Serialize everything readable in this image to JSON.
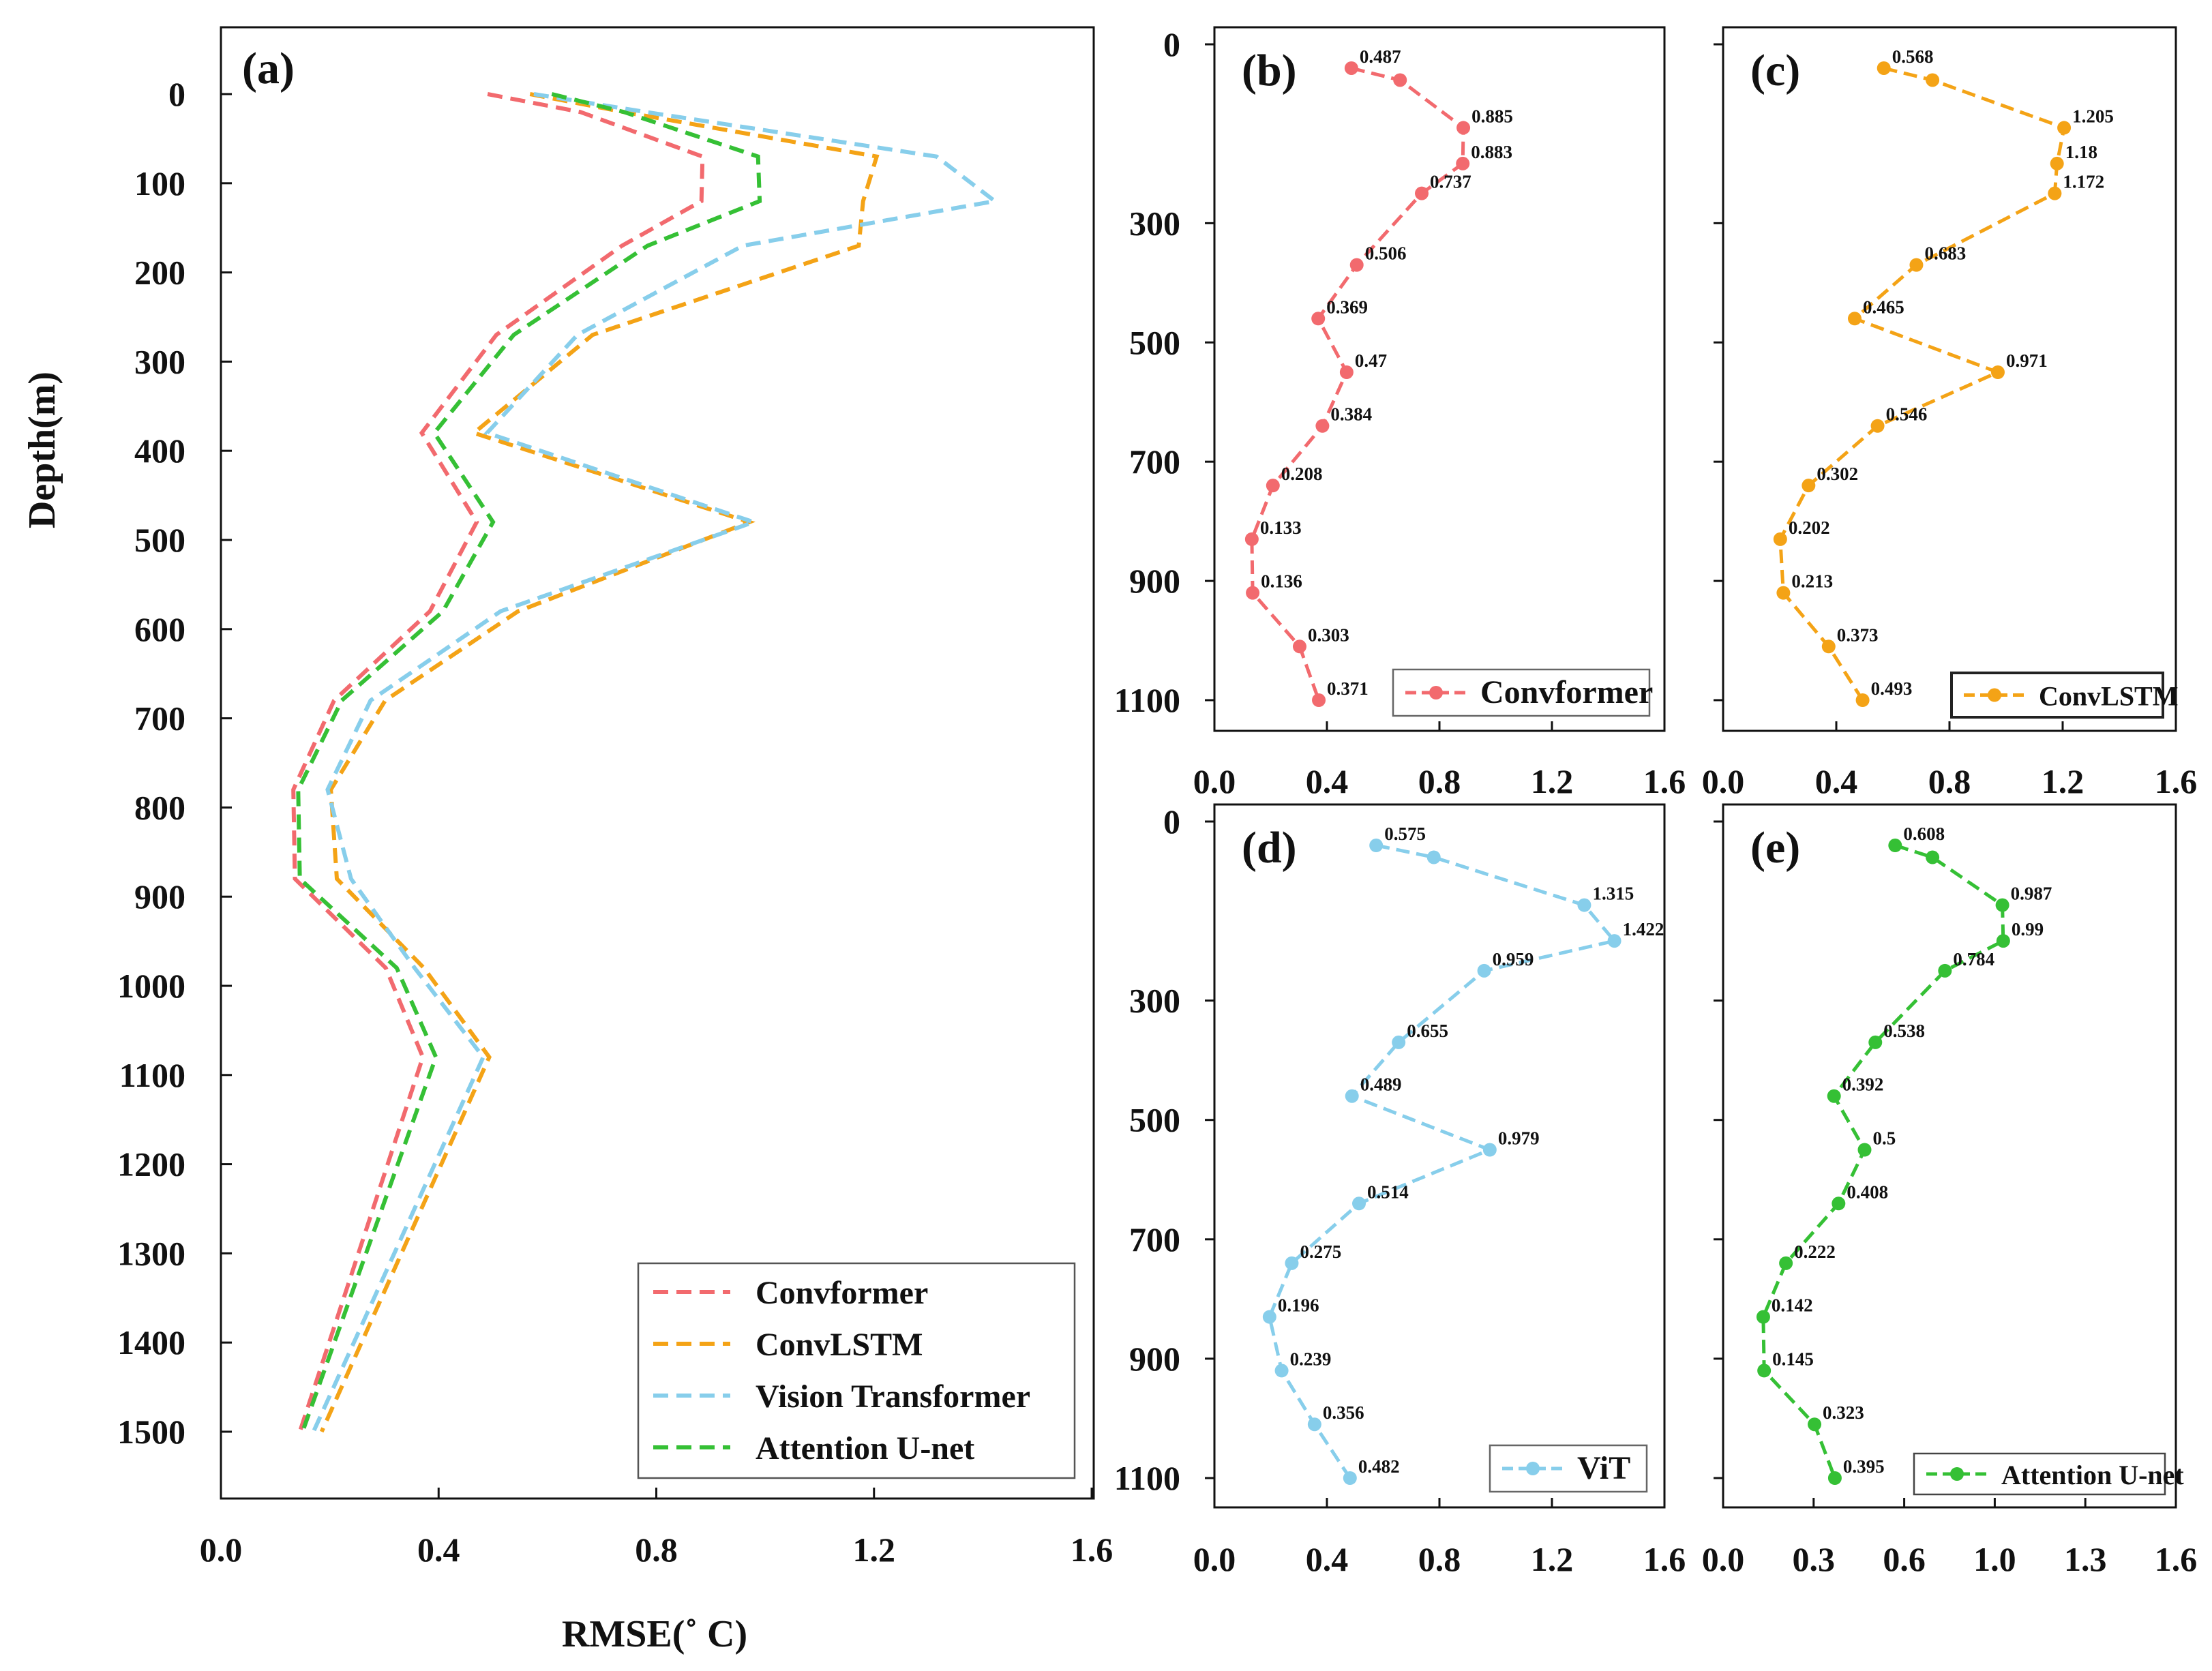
{
  "chart_data": [
    {
      "id": "a",
      "panel_label": "(a)",
      "type": "line",
      "xlabel": "RMSE(˚ C)",
      "ylabel": "Depth(m)",
      "xlim": [
        0.0,
        1.6
      ],
      "ylim": [
        1500,
        0
      ],
      "xticks": [
        "0.0",
        "0.4",
        "0.8",
        "1.2",
        "1.6"
      ],
      "yticks": [
        "0",
        "100",
        "200",
        "300",
        "400",
        "500",
        "600",
        "700",
        "800",
        "900",
        "1000",
        "1100",
        "1200",
        "1300",
        "1400",
        "1500"
      ],
      "legend_position": "bottom-right",
      "series": [
        {
          "name": "Convformer",
          "color": "#f26a6e",
          "x": [
            0.49,
            0.66,
            0.885,
            0.883,
            0.737,
            0.506,
            0.369,
            0.47,
            0.384,
            0.208,
            0.133,
            0.136,
            0.303,
            0.371,
            0.145
          ],
          "y": [
            0,
            20,
            70,
            120,
            170,
            270,
            380,
            480,
            580,
            680,
            780,
            880,
            980,
            1080,
            1500
          ]
        },
        {
          "name": "ConvLSTM",
          "color": "#f4a316",
          "x": [
            0.568,
            0.74,
            1.205,
            1.18,
            1.172,
            0.683,
            0.465,
            0.971,
            0.546,
            0.302,
            0.202,
            0.213,
            0.373,
            0.493,
            0.185
          ],
          "y": [
            0,
            20,
            70,
            120,
            170,
            270,
            380,
            480,
            580,
            680,
            780,
            880,
            980,
            1080,
            1500
          ]
        },
        {
          "name": "Vision Transformer",
          "color": "#87ceeb",
          "x": [
            0.575,
            0.78,
            1.315,
            1.422,
            0.959,
            0.655,
            0.489,
            0.979,
            0.514,
            0.275,
            0.196,
            0.239,
            0.356,
            0.482,
            0.17
          ],
          "y": [
            0,
            20,
            70,
            120,
            170,
            270,
            380,
            480,
            580,
            680,
            780,
            880,
            980,
            1080,
            1500
          ]
        },
        {
          "name": "Attention U-net",
          "color": "#35c035",
          "x": [
            0.608,
            0.74,
            0.987,
            0.99,
            0.784,
            0.538,
            0.392,
            0.5,
            0.408,
            0.222,
            0.142,
            0.145,
            0.323,
            0.395,
            0.15
          ],
          "y": [
            0,
            20,
            70,
            120,
            170,
            270,
            380,
            480,
            580,
            680,
            780,
            880,
            980,
            1080,
            1500
          ]
        }
      ]
    },
    {
      "id": "b",
      "panel_label": "(b)",
      "type": "line",
      "xlim": [
        0.0,
        1.6
      ],
      "ylim": [
        1100,
        0
      ],
      "xticks": [
        "0.0",
        "0.4",
        "0.8",
        "1.2",
        "1.6"
      ],
      "yticks": [
        "0",
        "300",
        "500",
        "700",
        "900",
        "1100"
      ],
      "legend_position": "bottom-right",
      "series": [
        {
          "name": "Convformer",
          "color": "#f26a6e",
          "x": [
            0.487,
            0.66,
            0.885,
            0.883,
            0.737,
            0.506,
            0.369,
            0.47,
            0.384,
            0.208,
            0.133,
            0.136,
            0.303,
            0.371
          ],
          "labels": [
            "0.487",
            "",
            "0.885",
            "0.883",
            "0.737",
            "0.506",
            "0.369",
            "0.47",
            "0.384",
            "0.208",
            "0.133",
            "0.136",
            "0.303",
            "0.371"
          ]
        }
      ]
    },
    {
      "id": "c",
      "panel_label": "(c)",
      "type": "line",
      "xlim": [
        0.0,
        1.6
      ],
      "ylim": [
        1100,
        0
      ],
      "xticks": [
        "0.0",
        "0.4",
        "0.8",
        "1.2",
        "1.6"
      ],
      "legend_position": "bottom-right",
      "series": [
        {
          "name": "ConvLSTM",
          "color": "#f4a316",
          "x": [
            0.568,
            0.74,
            1.205,
            1.18,
            1.172,
            0.683,
            0.465,
            0.971,
            0.546,
            0.302,
            0.202,
            0.213,
            0.373,
            0.493
          ],
          "labels": [
            "0.568",
            "",
            "1.205",
            "1.18",
            "1.172",
            "0.683",
            "0.465",
            "0.971",
            "0.546",
            "0.302",
            "0.202",
            "0.213",
            "0.373",
            "0.493"
          ]
        }
      ]
    },
    {
      "id": "d",
      "panel_label": "(d)",
      "type": "line",
      "xlim": [
        0.0,
        1.6
      ],
      "ylim": [
        1100,
        0
      ],
      "xticks": [
        "0.0",
        "0.4",
        "0.8",
        "1.2",
        "1.6"
      ],
      "yticks": [
        "0",
        "300",
        "500",
        "700",
        "900",
        "1100"
      ],
      "legend_position": "bottom-right",
      "series": [
        {
          "name": "ViT",
          "color": "#87ceeb",
          "x": [
            0.575,
            0.78,
            1.315,
            1.422,
            0.959,
            0.655,
            0.489,
            0.979,
            0.514,
            0.275,
            0.196,
            0.239,
            0.356,
            0.482
          ],
          "labels": [
            "0.575",
            "",
            "1.315",
            "1.422",
            "0.959",
            "0.655",
            "0.489",
            "0.979",
            "0.514",
            "0.275",
            "0.196",
            "0.239",
            "0.356",
            "0.482"
          ]
        }
      ]
    },
    {
      "id": "e",
      "panel_label": "(e)",
      "type": "line",
      "xlim": [
        0.0,
        1.6
      ],
      "ylim": [
        1100,
        0
      ],
      "xticks": [
        "0.0",
        "0.3",
        "0.6",
        "1.0",
        "1.3",
        "1.6"
      ],
      "legend_position": "bottom-right",
      "series": [
        {
          "name": "Attention U-net",
          "color": "#35c035",
          "x": [
            0.608,
            0.74,
            0.987,
            0.99,
            0.784,
            0.538,
            0.392,
            0.5,
            0.408,
            0.222,
            0.142,
            0.145,
            0.323,
            0.395
          ],
          "labels": [
            "0.608",
            "",
            "0.987",
            "0.99",
            "0.784",
            "0.538",
            "0.392",
            "0.5",
            "0.408",
            "0.222",
            "0.142",
            "0.145",
            "0.323",
            "0.395"
          ]
        }
      ]
    }
  ]
}
